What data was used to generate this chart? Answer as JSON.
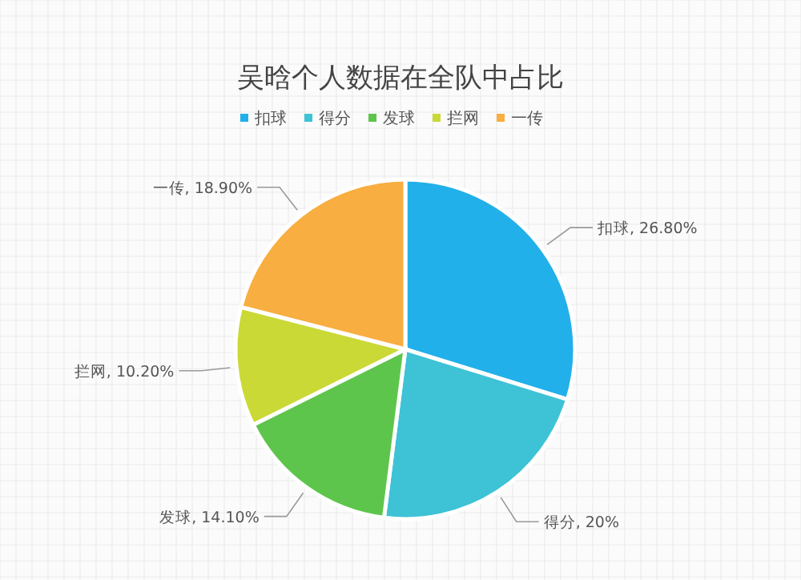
{
  "chart_data": {
    "type": "pie",
    "title": "吴晗个人数据在全队中占比",
    "categories": [
      "扣球",
      "得分",
      "发球",
      "拦网",
      "一传"
    ],
    "values": [
      26.8,
      20,
      14.1,
      10.2,
      18.9
    ],
    "value_labels": [
      "扣球, 26.80%",
      "得分, 20%",
      "发球, 14.10%",
      "拦网, 10.20%",
      "一传, 18.90%"
    ],
    "colors": [
      "#22b0ea",
      "#3ec2d6",
      "#5ec54c",
      "#cad935",
      "#f8ae40"
    ],
    "legend": "top"
  }
}
